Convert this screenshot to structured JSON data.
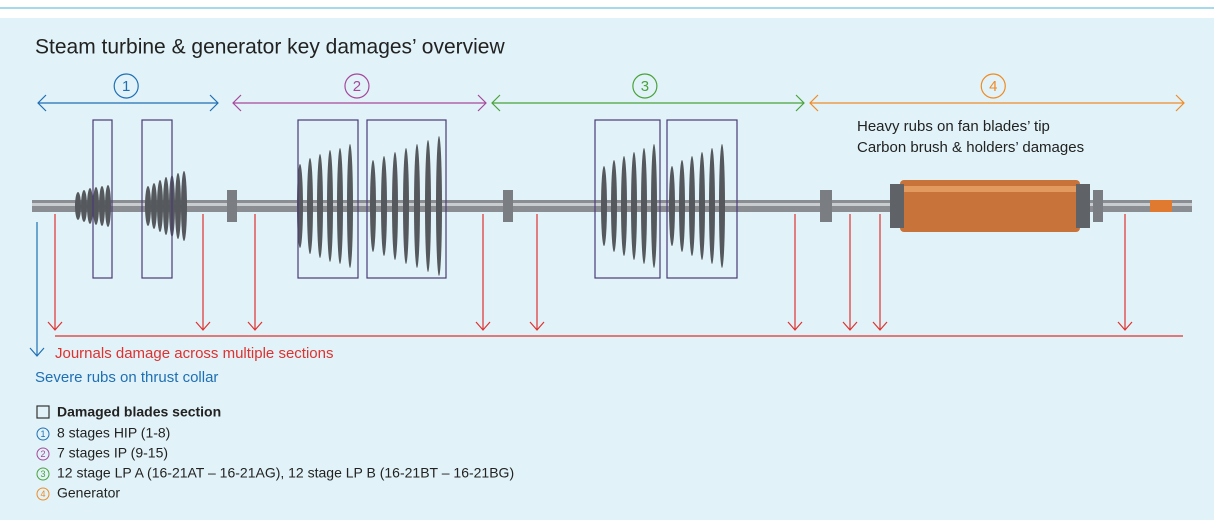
{
  "title": "Steam turbine & generator key damages’ overview",
  "sections": [
    {
      "number": "1",
      "color": "#1f6fb5"
    },
    {
      "number": "2",
      "color": "#a6479b"
    },
    {
      "number": "3",
      "color": "#4aa23a"
    },
    {
      "number": "4",
      "color": "#f08a24"
    }
  ],
  "annotations": {
    "generator_1": "Heavy rubs on fan blades’ tip",
    "generator_2": "Carbon brush & holders’ damages",
    "journals": "Journals damage across multiple sections",
    "thrust": "Severe rubs on thrust collar"
  },
  "legend": {
    "title": "Damaged blades section",
    "items": [
      {
        "number": "1",
        "text": "8 stages HIP (1-8)"
      },
      {
        "number": "2",
        "text": "7 stages IP (9-15)"
      },
      {
        "number": "3",
        "text": "12 stage LP A (16-21AT – 16-21AG), 12 stage LP B (16-21BT – 16-21BG)"
      },
      {
        "number": "4",
        "text": "Generator"
      }
    ]
  }
}
